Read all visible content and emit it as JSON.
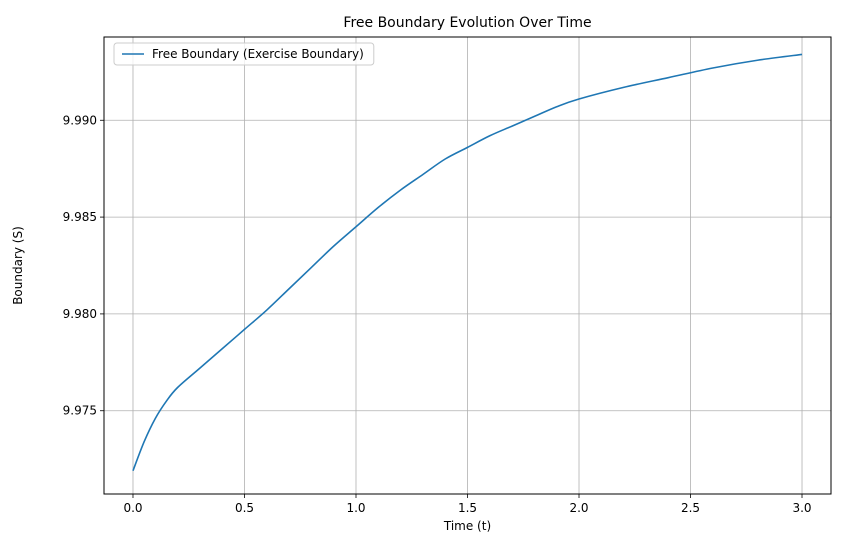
{
  "chart_data": {
    "type": "line",
    "title": "Free Boundary Evolution Over Time",
    "xlabel": "Time (t)",
    "ylabel": "Boundary (S)",
    "xlim": [
      -0.13,
      3.13
    ],
    "ylim": [
      9.9707,
      9.9943
    ],
    "xticks": [
      0.0,
      0.5,
      1.0,
      1.5,
      2.0,
      2.5,
      3.0
    ],
    "xtick_labels": [
      "0.0",
      "0.5",
      "1.0",
      "1.5",
      "2.0",
      "2.5",
      "3.0"
    ],
    "yticks": [
      9.975,
      9.98,
      9.985,
      9.99
    ],
    "ytick_labels": [
      "9.975",
      "9.980",
      "9.985",
      "9.990"
    ],
    "grid": true,
    "legend_position": "upper-left",
    "series": [
      {
        "name": "Free Boundary (Exercise Boundary)",
        "color": "#1f77b4",
        "x": [
          0.0,
          0.05,
          0.1,
          0.15,
          0.2,
          0.3,
          0.4,
          0.5,
          0.6,
          0.7,
          0.8,
          0.9,
          1.0,
          1.1,
          1.2,
          1.3,
          1.4,
          1.5,
          1.6,
          1.7,
          1.8,
          1.9,
          2.0,
          2.2,
          2.4,
          2.6,
          2.8,
          3.0
        ],
        "y": [
          9.9719,
          9.9734,
          9.9746,
          9.9755,
          9.9762,
          9.9772,
          9.9782,
          9.9792,
          9.9802,
          9.9813,
          9.9824,
          9.9835,
          9.9845,
          9.9855,
          9.9864,
          9.9872,
          9.988,
          9.9886,
          9.9892,
          9.9897,
          9.9902,
          9.9907,
          9.9911,
          9.9917,
          9.9922,
          9.9927,
          9.9931,
          9.9934
        ]
      }
    ]
  }
}
